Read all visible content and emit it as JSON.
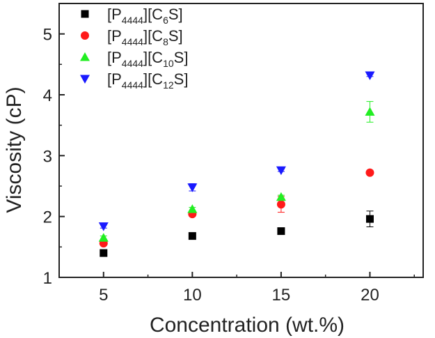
{
  "chart_data": {
    "type": "scatter",
    "title": "",
    "xlabel": "Concentration (wt.%)",
    "ylabel": "Viscosity (cP)",
    "xlim": [
      2.5,
      23
    ],
    "ylim": [
      1,
      5.5
    ],
    "xticks": [
      5,
      10,
      15,
      20
    ],
    "yticks": [
      1,
      2,
      3,
      4,
      5
    ],
    "legend_position": "top-left",
    "series": [
      {
        "name": "[P4444][C6S]",
        "label_parts": [
          "[P",
          "4444",
          "][C",
          "6",
          "S]"
        ],
        "marker": "square",
        "color": "#000000",
        "x": [
          5,
          10,
          15,
          20
        ],
        "y": [
          1.4,
          1.68,
          1.76,
          1.96
        ],
        "err": [
          0.04,
          0.02,
          0.04,
          0.13
        ]
      },
      {
        "name": "[P4444][C8S]",
        "label_parts": [
          "[P",
          "4444",
          "][C",
          "8",
          "S]"
        ],
        "marker": "circle",
        "color": "#ff1a1a",
        "x": [
          5,
          10,
          15,
          20
        ],
        "y": [
          1.56,
          2.04,
          2.2,
          2.72
        ],
        "err": [
          0.03,
          0.03,
          0.13,
          0.02
        ]
      },
      {
        "name": "[P4444][C10S]",
        "label_parts": [
          "[P",
          "4444",
          "][C",
          "10",
          "S]"
        ],
        "marker": "triangle-up",
        "color": "#22ee22",
        "x": [
          5,
          10,
          15,
          20
        ],
        "y": [
          1.65,
          2.12,
          2.32,
          3.72
        ],
        "err": [
          0.03,
          0.03,
          0.03,
          0.17
        ]
      },
      {
        "name": "[P4444][C12S]",
        "label_parts": [
          "[P",
          "4444",
          "][C",
          "12",
          "S]"
        ],
        "marker": "triangle-down",
        "color": "#1a1aff",
        "x": [
          5,
          10,
          15,
          20
        ],
        "y": [
          1.84,
          2.48,
          2.76,
          4.32
        ],
        "err": [
          0.03,
          0.06,
          0.02,
          0.02
        ]
      }
    ]
  }
}
